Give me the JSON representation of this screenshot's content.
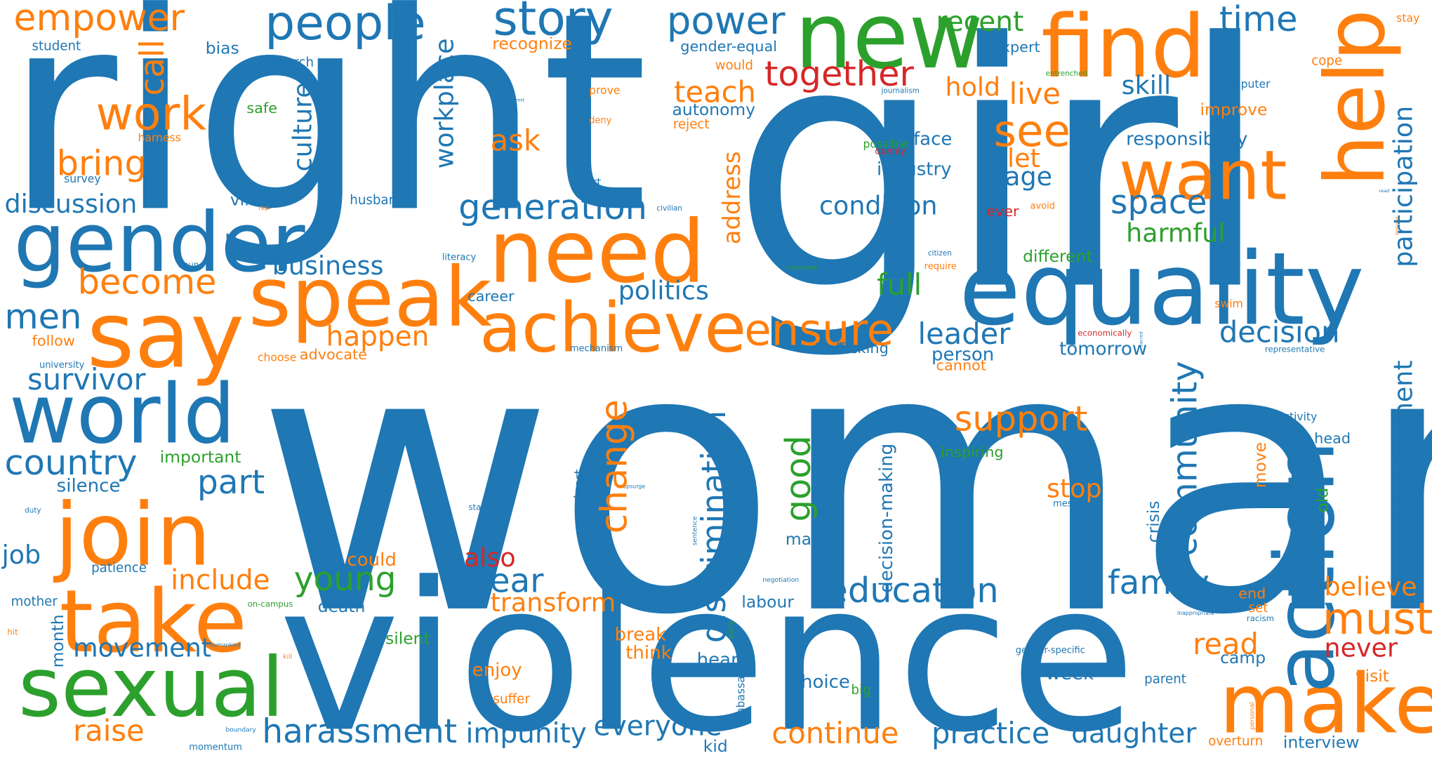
{
  "colors": {
    "blue": "#1f77b4",
    "orange": "#ff7f0e",
    "green": "#2ca02c",
    "red": "#d62728"
  },
  "words": {
    "woman": "woman",
    "girl": "girl",
    "right": "right",
    "violence": "violence",
    "gender": "gender",
    "equality": "equality",
    "new": "new",
    "find": "find",
    "need": "need",
    "speak": "speak",
    "say": "say",
    "achieve": "achieve",
    "help": "help",
    "want": "want",
    "action": "action",
    "make": "make",
    "sexual": "sexual",
    "take": "take",
    "join": "join",
    "world": "world",
    "people": "people",
    "story": "story",
    "power": "power",
    "empower": "empower",
    "work": "work",
    "call": "call",
    "bring": "bring",
    "discussion": "discussion",
    "country": "country",
    "men": "men",
    "become": "become",
    "survivor": "survivor",
    "culture": "culture",
    "workplace": "workplace",
    "together": "together",
    "teach": "teach",
    "ask": "ask",
    "recent": "recent",
    "expert": "expert",
    "time": "time",
    "see": "see",
    "let": "let",
    "age": "age",
    "live": "live",
    "hold": "hold",
    "skill": "skill",
    "space": "space",
    "responsibility": "responsibility",
    "harmful": "harmful",
    "participation": "participation",
    "improve": "improve",
    "cope": "cope",
    "stay": "stay",
    "computer": "computer",
    "ensure": "ensure",
    "politics": "politics",
    "business": "business",
    "generation": "generation",
    "condition": "condition",
    "industry": "industry",
    "face": "face",
    "different": "different",
    "full": "full",
    "happen": "happen",
    "leader": "leader",
    "decision": "decision",
    "tomorrow": "tomorrow",
    "person": "person",
    "cannot": "cannot",
    "trafficking": "trafficking",
    "community": "community",
    "support": "support",
    "change": "change",
    "discrimination": "discrimination",
    "good": "good",
    "education": "education",
    "family": "family",
    "believe": "believe",
    "must": "must",
    "never": "never",
    "employment": "employment",
    "young": "young",
    "year": "year",
    "also": "also",
    "transform": "transform",
    "include": "include",
    "part": "part",
    "movement": "movement",
    "harassment": "harassment",
    "impunity": "impunity",
    "everyone": "everyone",
    "continue": "continue",
    "practice": "practice",
    "daughter": "daughter",
    "raise": "raise",
    "read": "read",
    "visit": "visit",
    "interview": "interview",
    "camp": "camp",
    "end": "end",
    "set": "set",
    "stop": "stop",
    "crisis": "crisis",
    "move": "move",
    "old": "old",
    "address": "address",
    "decision_making": "decision-making",
    "job": "job",
    "silence": "silence",
    "important": "important",
    "mother": "mother",
    "month": "month",
    "patience": "patience",
    "could": "could",
    "death": "death",
    "silent": "silent",
    "break": "break",
    "think": "think",
    "enjoy": "enjoy",
    "suffer": "suffer",
    "choice": "choice",
    "heart": "heart",
    "labour": "labour",
    "kid": "kid",
    "week": "week",
    "man": "man",
    "big": "big",
    "ambassador": "ambassador",
    "bystander": "bystander",
    "parent": "parent",
    "overturn": "overturn",
    "inspiring": "inspiring",
    "head": "head",
    "activity": "activity",
    "bias": "bias",
    "student": "student",
    "research": "research",
    "safe": "safe",
    "harness": "harness",
    "survey": "survey",
    "village": "village",
    "husband": "husband",
    "recognize": "recognize",
    "would": "would",
    "gender_equal": "gender-equal",
    "autonomy": "autonomy",
    "reject": "reject",
    "prove": "prove",
    "deny": "deny",
    "court": "court",
    "possible": "possible",
    "openly": "openly",
    "entrenched": "entrenched",
    "journalism": "journalism",
    "civilian": "civilian",
    "avoid": "avoid",
    "ever": "ever",
    "require": "require",
    "citizen": "citizen",
    "complacent": "complacent",
    "literacy": "literacy",
    "career": "career",
    "mechanism": "mechanism",
    "swim": "swim",
    "economically": "economically",
    "representative": "representative",
    "follow": "follow",
    "university": "university",
    "choose": "choose",
    "advocate": "advocate",
    "noun": "noun",
    "duty": "duty",
    "state": "state",
    "advert": "advert",
    "upsurge": "upsurge",
    "message": "message",
    "sentence": "sentence",
    "negotiation": "negotiation",
    "gender_specific": "gender-specific",
    "inappropriate": "inappropriate",
    "racism": "racism",
    "early": "early",
    "personal": "personal",
    "boundary": "boundary",
    "momentum": "momentum",
    "humankind": "humankind",
    "kill": "kill",
    "hit": "hit",
    "on_campus": "on-campus",
    "interest": "interest",
    "rap": "rap",
    "read_small": "read",
    "demand": "demand",
    "sacred": "sacred"
  }
}
